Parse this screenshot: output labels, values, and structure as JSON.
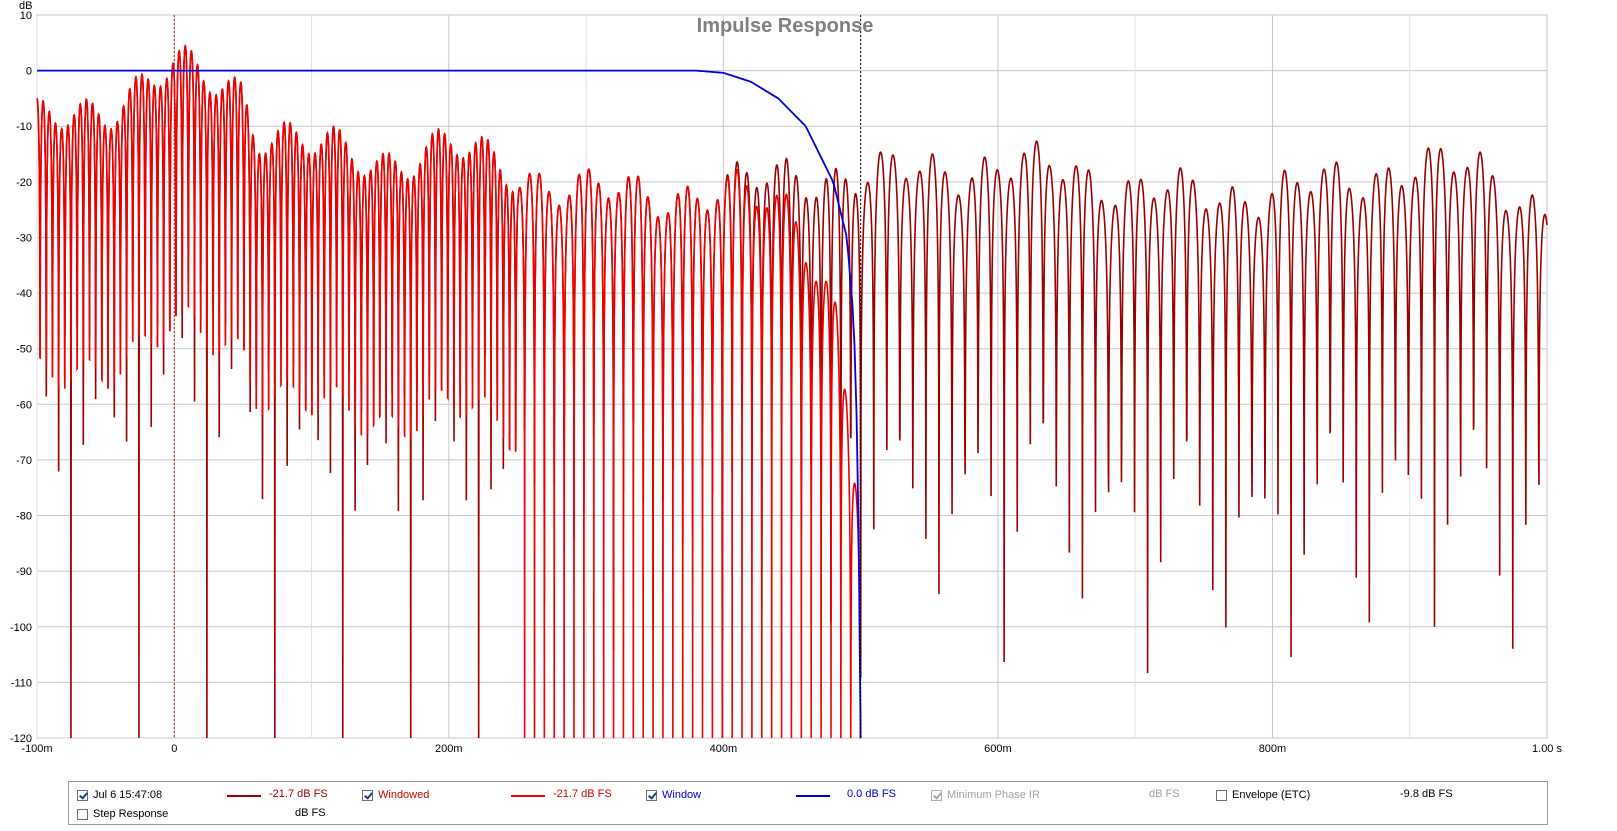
{
  "chart_data": {
    "type": "line",
    "title": "Impulse Response",
    "xlabel": "",
    "ylabel": "dB",
    "x_unit": "s",
    "xlim": [
      -0.1,
      1.0
    ],
    "ylim": [
      -120,
      10
    ],
    "grid": true,
    "x_ticks": [
      {
        "value": -0.1,
        "label": "-100m"
      },
      {
        "value": 0,
        "label": "0"
      },
      {
        "value": 0.2,
        "label": "200m"
      },
      {
        "value": 0.4,
        "label": "400m"
      },
      {
        "value": 0.6,
        "label": "600m"
      },
      {
        "value": 0.8,
        "label": "800m"
      },
      {
        "value": 1.0,
        "label": "1.00 s"
      }
    ],
    "y_ticks": [
      10,
      0,
      -10,
      -20,
      -30,
      -40,
      -50,
      -60,
      -70,
      -80,
      -90,
      -100,
      -110,
      -120
    ],
    "markers": [
      {
        "x": 0.0,
        "style": "dashed",
        "color": "#d01010"
      },
      {
        "x": 0.5,
        "style": "dashed",
        "color": "#000000"
      }
    ],
    "series": [
      {
        "name": "Jul 6 15:47:08",
        "color": "#990000",
        "kind": "oscillating-envelope",
        "envelope": [
          [
            -0.1,
            -10
          ],
          [
            -0.05,
            -6
          ],
          [
            0.0,
            0
          ],
          [
            0.05,
            -3
          ],
          [
            0.06,
            -10
          ],
          [
            0.1,
            -14
          ],
          [
            0.15,
            -16
          ],
          [
            0.2,
            -14
          ],
          [
            0.25,
            -18
          ],
          [
            0.3,
            -22
          ],
          [
            0.35,
            -22
          ],
          [
            0.4,
            -22
          ],
          [
            0.45,
            -18
          ],
          [
            0.5,
            -20
          ],
          [
            0.55,
            -17
          ],
          [
            0.6,
            -18
          ],
          [
            0.65,
            -17
          ],
          [
            0.7,
            -22
          ],
          [
            0.75,
            -22
          ],
          [
            0.8,
            -22
          ],
          [
            0.85,
            -20
          ],
          [
            0.9,
            -17
          ],
          [
            0.95,
            -18
          ],
          [
            1.0,
            -25
          ]
        ]
      },
      {
        "name": "Windowed",
        "color": "#ee0000",
        "kind": "oscillating-envelope-windowed",
        "envelope": [
          [
            -0.1,
            -10
          ],
          [
            -0.05,
            -6
          ],
          [
            0.0,
            0
          ],
          [
            0.05,
            -3
          ],
          [
            0.06,
            -10
          ],
          [
            0.1,
            -14
          ],
          [
            0.15,
            -16
          ],
          [
            0.2,
            -14
          ],
          [
            0.25,
            -18
          ],
          [
            0.3,
            -22
          ],
          [
            0.35,
            -22
          ],
          [
            0.4,
            -22
          ],
          [
            0.45,
            -25
          ],
          [
            0.48,
            -40
          ],
          [
            0.5,
            -80
          ]
        ]
      },
      {
        "name": "Window",
        "color": "#0000dd",
        "kind": "window",
        "points": [
          [
            -0.1,
            0
          ],
          [
            0.38,
            0
          ],
          [
            0.4,
            -0.4
          ],
          [
            0.42,
            -2
          ],
          [
            0.44,
            -5
          ],
          [
            0.46,
            -10
          ],
          [
            0.47,
            -15
          ],
          [
            0.48,
            -20
          ],
          [
            0.49,
            -30
          ],
          [
            0.495,
            -45
          ],
          [
            0.498,
            -70
          ],
          [
            0.5,
            -120
          ]
        ]
      }
    ]
  },
  "legend": {
    "items": [
      {
        "label": "Jul 6 15:47:08",
        "checked": true,
        "enabled": true,
        "color": "#990000",
        "value": "-21.7 dB FS",
        "label_color": "#000000"
      },
      {
        "label": "Windowed",
        "checked": true,
        "enabled": true,
        "color": "#ee0000",
        "value": "-21.7 dB FS",
        "label_color": "#cc0000"
      },
      {
        "label": "Window",
        "checked": true,
        "enabled": true,
        "color": "#0000cc",
        "value": "0.0 dB FS",
        "label_color": "#0000cc"
      },
      {
        "label": "Minimum Phase IR",
        "checked": true,
        "enabled": false,
        "color": "",
        "value": "dB FS",
        "label_color": "#a0a0a0"
      },
      {
        "label": "Envelope (ETC)",
        "checked": false,
        "enabled": true,
        "color": "",
        "value": "-9.8 dB FS",
        "label_color": "#000000"
      },
      {
        "label": "Step Response",
        "checked": false,
        "enabled": true,
        "color": "",
        "value": "dB FS",
        "label_color": "#000000"
      }
    ]
  }
}
